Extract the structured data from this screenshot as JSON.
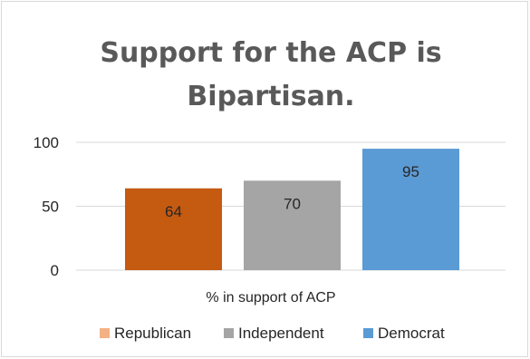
{
  "chart_data": {
    "type": "bar",
    "title": "Support for the ACP is Bipartisan.",
    "title_lines": [
      "Support for the ACP is",
      "Bipartisan."
    ],
    "categories": [
      "% in support of ACP"
    ],
    "xlabel": "% in support of ACP",
    "ylabel": "",
    "ylim": [
      0,
      100
    ],
    "yticks": [
      0,
      50,
      100
    ],
    "grid": true,
    "legend_position": "bottom",
    "series": [
      {
        "name": "Republican",
        "values": [
          64
        ],
        "color": "#C55A11",
        "legend_color": "#F4B183"
      },
      {
        "name": "Independent",
        "values": [
          70
        ],
        "color": "#A5A5A5",
        "legend_color": "#A5A5A5"
      },
      {
        "name": "Democrat",
        "values": [
          95
        ],
        "color": "#5B9BD5",
        "legend_color": "#5B9BD5"
      }
    ]
  }
}
